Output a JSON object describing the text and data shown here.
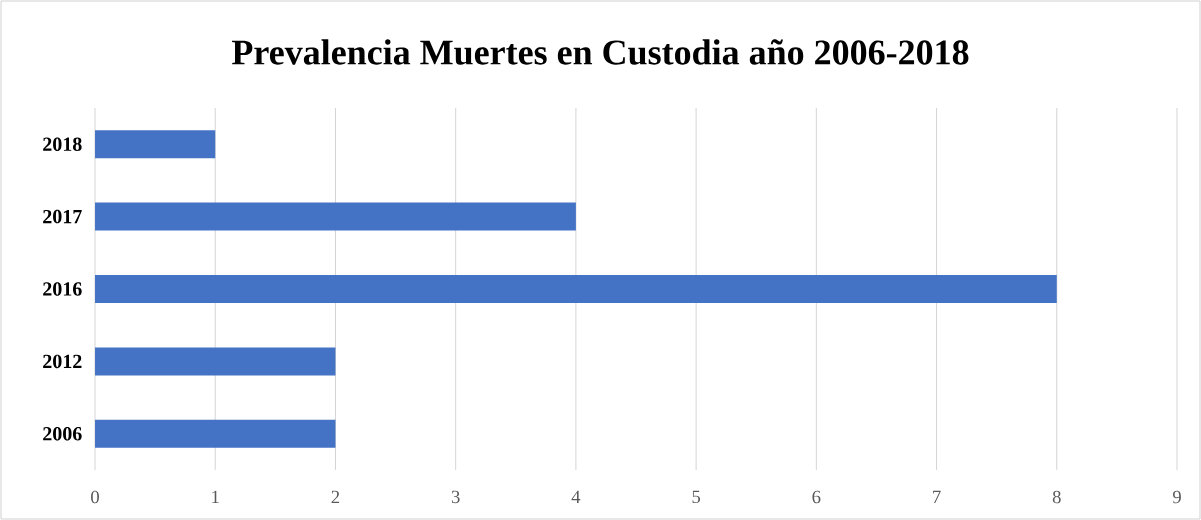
{
  "chart_data": {
    "type": "bar",
    "orientation": "horizontal",
    "title": "Prevalencia Muertes en Custodia año 2006-2018",
    "categories": [
      "2018",
      "2017",
      "2016",
      "2012",
      "2006"
    ],
    "values": [
      1,
      4,
      8,
      2,
      2
    ],
    "color": "#4472c4",
    "xlim": [
      0,
      9
    ],
    "xticks": [
      0,
      1,
      2,
      3,
      4,
      5,
      6,
      7,
      8,
      9
    ],
    "grid": "x"
  }
}
